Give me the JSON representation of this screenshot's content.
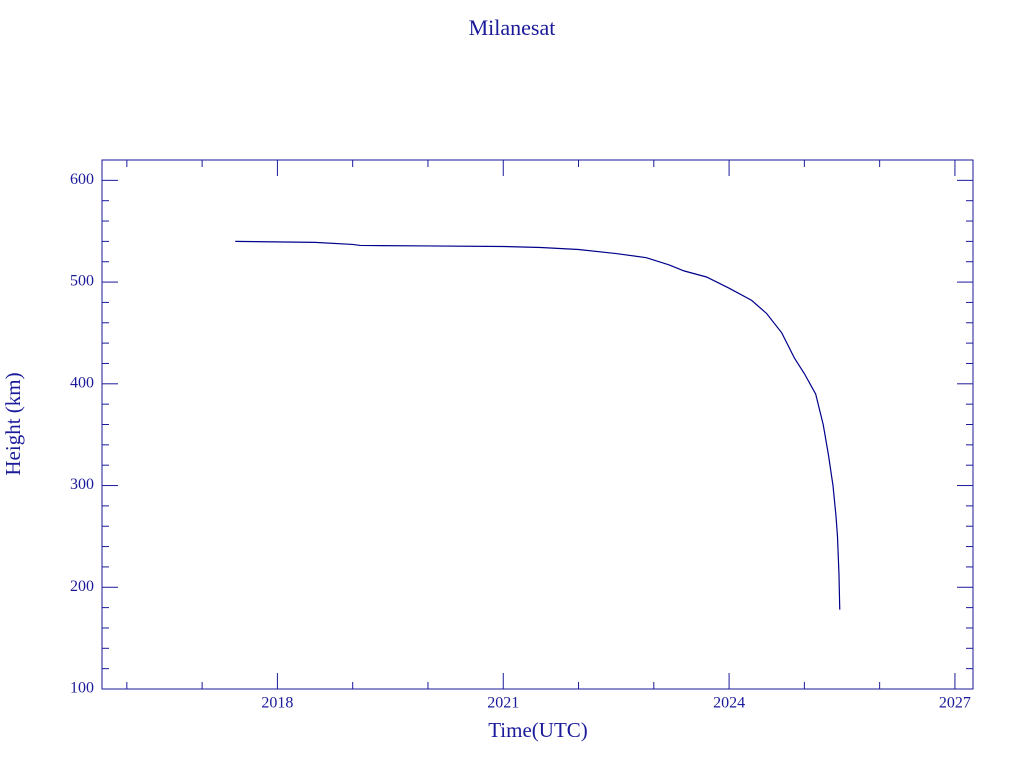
{
  "chart_data": {
    "type": "line",
    "title": "Milanesat",
    "x_label": "Time(UTC)",
    "y_label": "Height (km)",
    "color": "#00008b",
    "x": [
      2017.44,
      2018.5,
      2019.0,
      2019.1,
      2020.0,
      2021.0,
      2021.5,
      2022.0,
      2022.5,
      2022.9,
      2023.2,
      2023.4,
      2023.7,
      2024.0,
      2024.3,
      2024.5,
      2024.7,
      2024.87,
      2025.0,
      2025.15,
      2025.25,
      2025.32,
      2025.38,
      2025.42,
      2025.44,
      2025.46,
      2025.47
    ],
    "values": [
      540,
      539,
      537,
      536,
      535.5,
      535,
      534,
      532,
      528,
      524,
      517,
      511,
      505,
      494,
      482,
      469,
      450,
      425,
      410,
      390,
      360,
      330,
      300,
      270,
      250,
      212,
      178
    ],
    "xlim": [
      2015.67,
      2027.24
    ],
    "xticks": [
      2018,
      2021,
      2024,
      2027
    ],
    "xminorticks": [
      2016,
      2017,
      2019,
      2020,
      2022,
      2023,
      2025,
      2026
    ],
    "ylim": [
      100,
      620
    ],
    "yticks": [
      100,
      200,
      300,
      400,
      500,
      600
    ],
    "yminorticks": [
      120,
      140,
      160,
      180,
      220,
      240,
      260,
      280,
      320,
      340,
      360,
      380,
      420,
      440,
      460,
      480,
      520,
      540,
      560,
      580,
      620
    ]
  }
}
